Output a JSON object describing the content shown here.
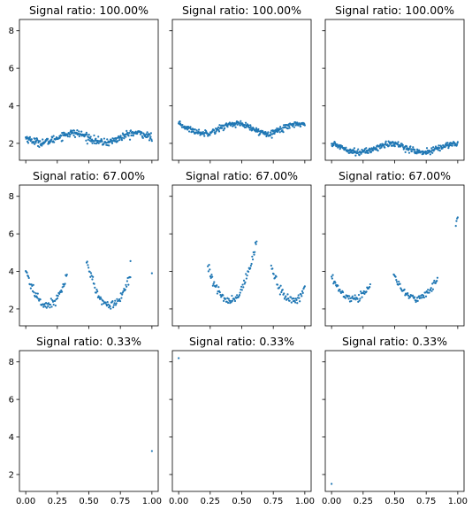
{
  "chart_data": {
    "type": "scatter",
    "layout": "3x3 grid, shared x and y axes",
    "marker_color": "#1f77b4",
    "grid": false,
    "xlim": [
      -0.05,
      1.05
    ],
    "ylim": [
      1.1,
      8.6
    ],
    "xticks": [
      0.0,
      0.25,
      0.5,
      0.75,
      1.0
    ],
    "xtick_labels": [
      "0.00",
      "0.25",
      "0.50",
      "0.75",
      "1.00"
    ],
    "yticks": [
      2,
      4,
      6,
      8
    ],
    "ytick_labels": [
      "2",
      "4",
      "6",
      "8"
    ],
    "panels": [
      {
        "title": "Signal ratio: 100.00%",
        "x_range": [
          0.0,
          1.0
        ],
        "n": 300,
        "base": 2.3,
        "amp": 0.25,
        "period": 0.5,
        "phase": 0.5,
        "noise": 0.1,
        "windows": [
          [
            0.0,
            1.0
          ]
        ]
      },
      {
        "title": "Signal ratio: 100.00%",
        "x_range": [
          0.0,
          1.0
        ],
        "n": 300,
        "base": 2.8,
        "amp": 0.25,
        "period": 0.5,
        "phase": 0.35,
        "noise": 0.08,
        "windows": [
          [
            0.0,
            1.0
          ]
        ]
      },
      {
        "title": "Signal ratio: 100.00%",
        "x_range": [
          0.0,
          1.0
        ],
        "n": 300,
        "base": 1.75,
        "amp": 0.22,
        "period": 0.5,
        "phase": 0.3,
        "noise": 0.08,
        "windows": [
          [
            0.0,
            1.0
          ]
        ]
      },
      {
        "title": "Signal ratio: 67.00%",
        "x_range": [
          0.0,
          1.0
        ],
        "n": 200,
        "shape": "parabola",
        "centers": [
          0.17,
          0.67
        ],
        "min": 2.2,
        "k": 65,
        "noise": 0.12,
        "windows": [
          [
            0.0,
            0.33
          ],
          [
            0.48,
            0.83
          ]
        ],
        "extra": [
          [
            1.0,
            3.9
          ],
          [
            0.83,
            4.55
          ]
        ]
      },
      {
        "title": "Signal ratio: 67.00%",
        "x_range": [
          0.0,
          1.0
        ],
        "n": 200,
        "shape": "parabola",
        "centers": [
          0.4,
          0.9
        ],
        "min": 2.45,
        "k": 65,
        "noise": 0.13,
        "windows": [
          [
            0.0,
            0.03
          ],
          [
            0.23,
            0.62
          ],
          [
            0.73,
            1.0
          ]
        ],
        "extra": []
      },
      {
        "title": "Signal ratio: 67.00%",
        "x_range": [
          0.0,
          1.0
        ],
        "n": 200,
        "shape": "parabola",
        "centers": [
          0.17,
          0.67
        ],
        "min": 2.55,
        "k": 40,
        "noise": 0.1,
        "windows": [
          [
            0.0,
            0.31
          ],
          [
            0.49,
            0.84
          ],
          [
            0.98,
            1.0
          ]
        ],
        "extra": []
      },
      {
        "title": "Signal ratio: 0.33%",
        "points": [
          [
            1.0,
            3.25
          ]
        ]
      },
      {
        "title": "Signal ratio: 0.33%",
        "points": [
          [
            0.0,
            8.2
          ]
        ]
      },
      {
        "title": "Signal ratio: 0.33%",
        "points": [
          [
            0.0,
            1.5
          ]
        ]
      }
    ]
  }
}
